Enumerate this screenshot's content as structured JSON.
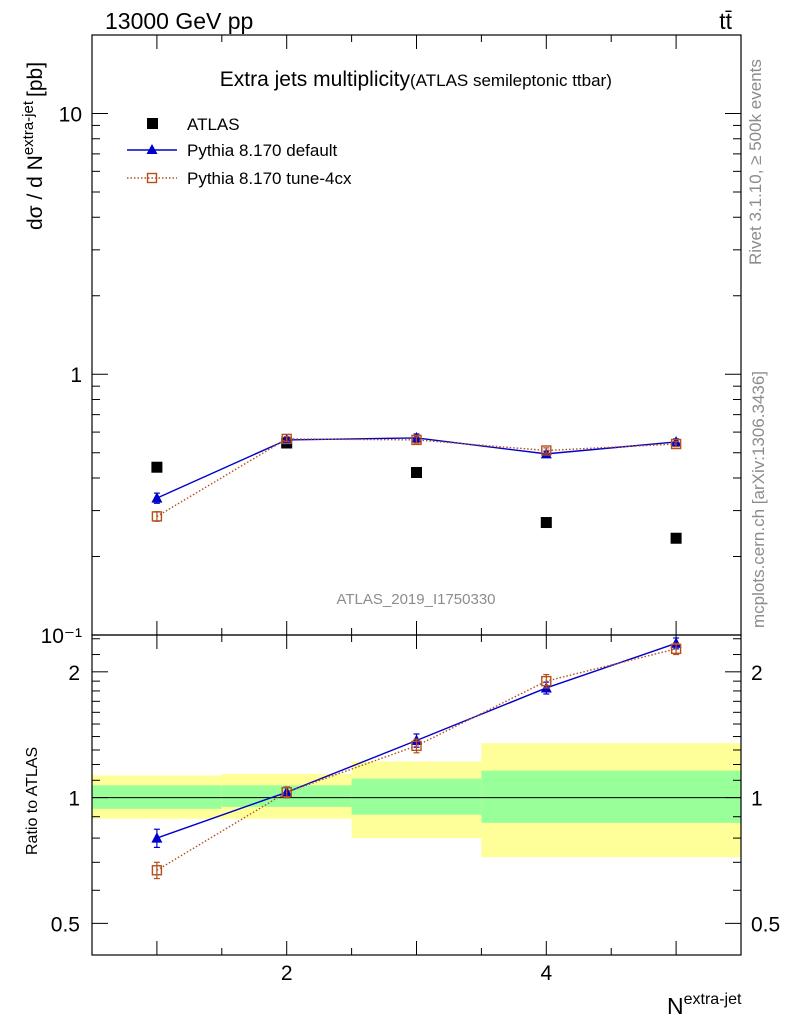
{
  "header": {
    "energy_label": "13000 GeV pp",
    "process_label": "tt̄"
  },
  "side_labels": {
    "rivet": "Rivet 3.1.10, ≥ 500k events",
    "source": "mcplots.cern.ch [arXiv:1306.3436]"
  },
  "chart_data": [
    {
      "type": "scatter",
      "title": "Extra jets multiplicity",
      "subtitle": "(ATLAS semileptonic ttbar)",
      "ylabel": "dσ / d N",
      "ylabel_sup": "extra-jet",
      "ylabel_unit": "[pb]",
      "watermark": "ATLAS_2019_I1750330",
      "yscale": "log",
      "xlim": [
        0.5,
        5.5
      ],
      "ylim": [
        0.1,
        20
      ],
      "yticks": [
        0.1,
        1,
        10
      ],
      "ytick_labels": [
        "10⁻¹",
        "1",
        "10"
      ],
      "legend_position": "top-left",
      "x": [
        1,
        2,
        3,
        4,
        5
      ],
      "series": [
        {
          "name": "ATLAS",
          "color": "#000000",
          "marker": "square",
          "values": [
            0.44,
            0.545,
            0.42,
            0.27,
            0.235
          ]
        },
        {
          "name": "Pythia 8.170 default",
          "color": "#0000cc",
          "marker": "triangle",
          "line": "solid",
          "values": [
            0.335,
            0.56,
            0.57,
            0.495,
            0.55
          ],
          "errors": [
            0.015,
            0.012,
            0.02,
            0.012,
            0.015
          ]
        },
        {
          "name": "Pythia 8.170 tune-4cx",
          "color": "#b5501e",
          "marker": "open-square",
          "line": "dotted",
          "values": [
            0.285,
            0.565,
            0.56,
            0.51,
            0.54
          ],
          "errors": [
            0.012,
            0.012,
            0.015,
            0.012,
            0.012
          ]
        }
      ]
    },
    {
      "type": "scatter",
      "ylabel": "Ratio to ATLAS",
      "xlabel": "N",
      "xlabel_sup": "extra-jet",
      "yscale": "log",
      "xlim": [
        0.5,
        5.5
      ],
      "ylim": [
        0.42,
        2.45
      ],
      "yticks": [
        0.5,
        1,
        2
      ],
      "ytick_labels": [
        "0.5",
        "1",
        "2"
      ],
      "xticks": [
        2,
        4
      ],
      "xtick_labels": [
        "2",
        "4"
      ],
      "reference_line": 1,
      "bands": [
        {
          "x0": 0.5,
          "x1": 1.5,
          "green_lo": 0.94,
          "green_hi": 1.07,
          "yellow_lo": 0.89,
          "yellow_hi": 1.13
        },
        {
          "x0": 1.5,
          "x1": 2.5,
          "green_lo": 0.95,
          "green_hi": 1.07,
          "yellow_lo": 0.89,
          "yellow_hi": 1.14
        },
        {
          "x0": 2.5,
          "x1": 3.5,
          "green_lo": 0.91,
          "green_hi": 1.11,
          "yellow_lo": 0.8,
          "yellow_hi": 1.22
        },
        {
          "x0": 3.5,
          "x1": 5.5,
          "green_lo": 0.87,
          "green_hi": 1.16,
          "yellow_lo": 0.72,
          "yellow_hi": 1.35
        }
      ],
      "x": [
        1,
        2,
        3,
        4,
        5
      ],
      "series": [
        {
          "name": "Pythia 8.170 default",
          "color": "#0000cc",
          "marker": "triangle",
          "line": "solid",
          "values": [
            0.8,
            1.03,
            1.37,
            1.83,
            2.34
          ],
          "errors": [
            0.04,
            0.03,
            0.05,
            0.06,
            0.07
          ]
        },
        {
          "name": "Pythia 8.170 tune-4cx",
          "color": "#b5501e",
          "marker": "open-square",
          "line": "dotted",
          "values": [
            0.67,
            1.03,
            1.33,
            1.9,
            2.27
          ],
          "errors": [
            0.03,
            0.03,
            0.05,
            0.07,
            0.07
          ]
        }
      ]
    }
  ]
}
